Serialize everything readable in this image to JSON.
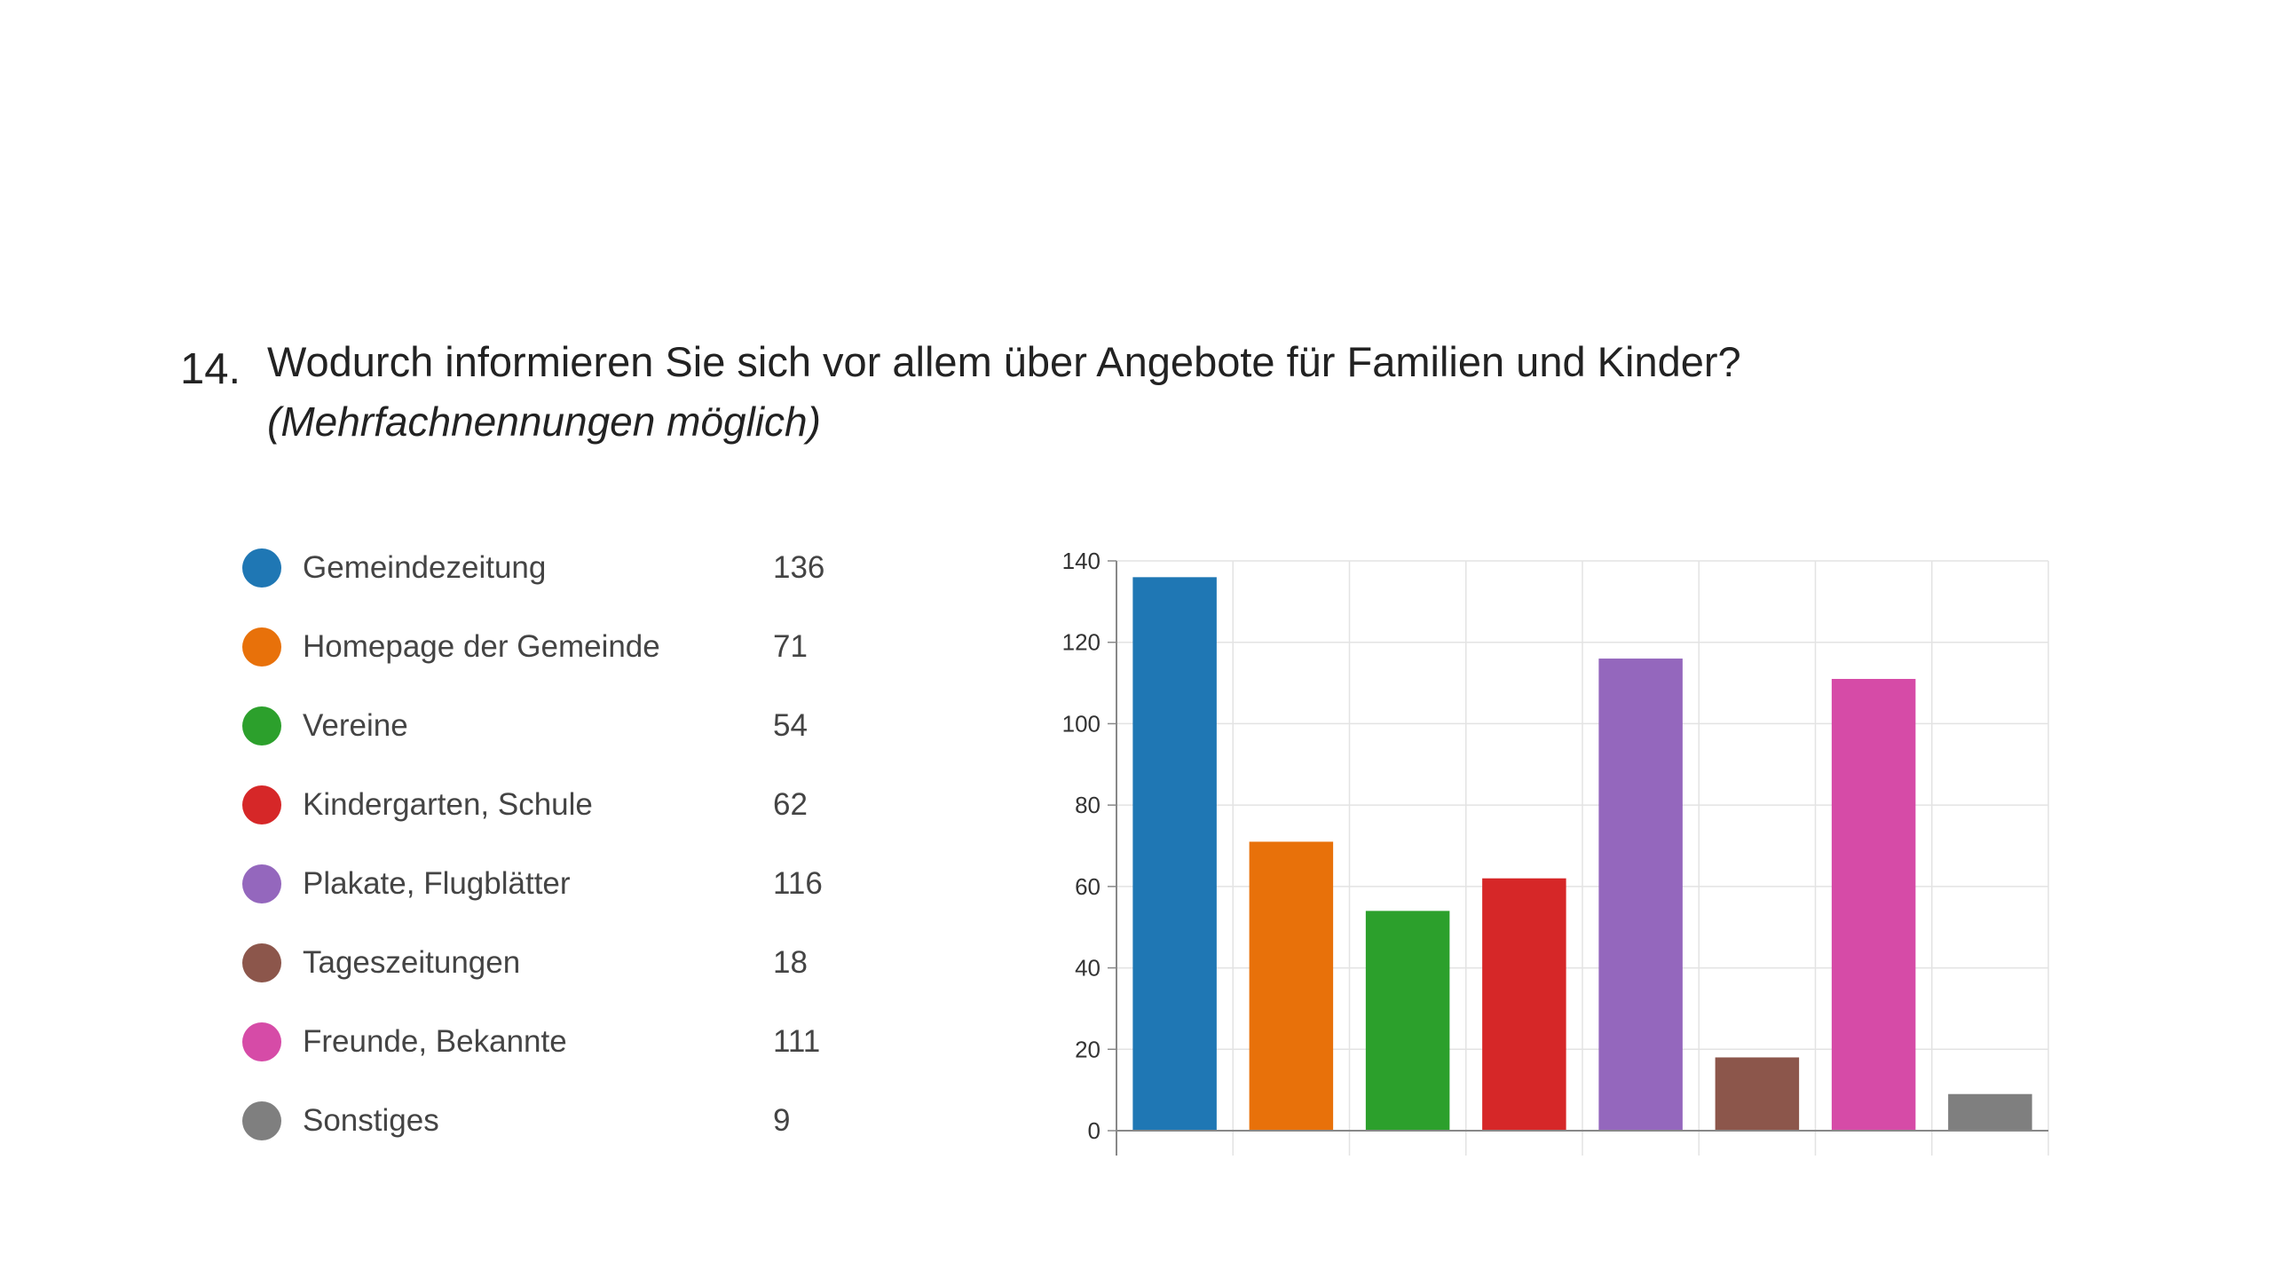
{
  "question": {
    "number": "14.",
    "title": "Wodurch informieren Sie sich vor allem über Angebote für Familien und Kinder?",
    "subtitle": "(Mehrfachnennungen möglich)"
  },
  "chart_data": {
    "type": "bar",
    "categories": [
      "Gemeindezeitung",
      "Homepage der Gemeinde",
      "Vereine",
      "Kindergarten, Schule",
      "Plakate, Flugblätter",
      "Tageszeitungen",
      "Freunde, Bekannte",
      "Sonstiges"
    ],
    "values": [
      136,
      71,
      54,
      62,
      116,
      18,
      111,
      9
    ],
    "colors": [
      "#1f77b4",
      "#e8710a",
      "#2ca02c",
      "#d62728",
      "#9467bd",
      "#8c564b",
      "#d64ba7",
      "#7f7f7f"
    ],
    "ylim": [
      0,
      140
    ],
    "yticks": [
      0,
      20,
      40,
      60,
      80,
      100,
      120,
      140
    ],
    "grid": true,
    "legend_placement": "left",
    "title": "",
    "xlabel": "",
    "ylabel": ""
  }
}
